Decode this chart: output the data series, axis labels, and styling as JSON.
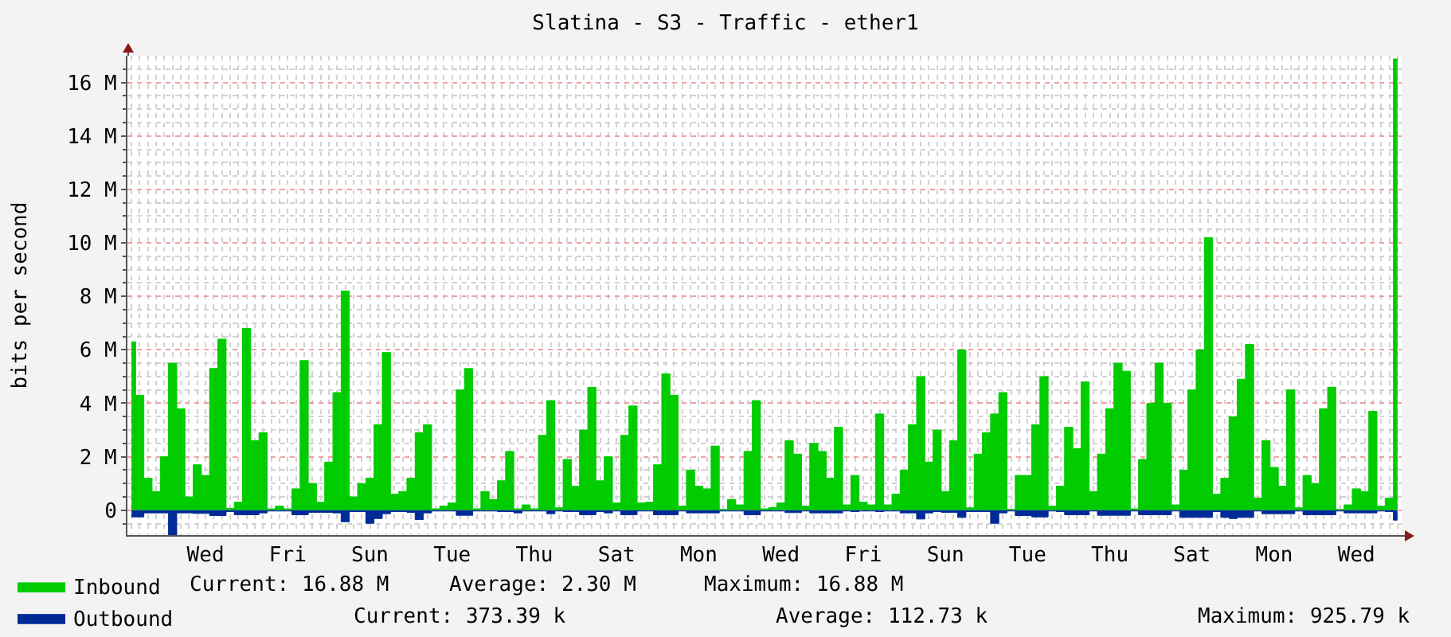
{
  "chart_data": {
    "type": "area",
    "title": "Slatina - S3 - Traffic - ether1",
    "ylabel": "bits per second",
    "categories": [
      null,
      null,
      null,
      null,
      null,
      null,
      null,
      null,
      null,
      "Wed",
      null,
      null,
      null,
      null,
      null,
      null,
      null,
      null,
      null,
      "Fri",
      null,
      null,
      null,
      null,
      null,
      null,
      null,
      null,
      null,
      "Sun",
      null,
      null,
      null,
      null,
      null,
      null,
      null,
      null,
      null,
      "Tue",
      null,
      null,
      null,
      null,
      null,
      null,
      null,
      null,
      null,
      "Thu",
      null,
      null,
      null,
      null,
      null,
      null,
      null,
      null,
      null,
      "Sat",
      null,
      null,
      null,
      null,
      null,
      null,
      null,
      null,
      null,
      "Mon",
      null,
      null,
      null,
      null,
      null,
      null,
      null,
      null,
      null,
      "Wed",
      null,
      null,
      null,
      null,
      null,
      null,
      null,
      null,
      null,
      "Fri",
      null,
      null,
      null,
      null,
      null,
      null,
      null,
      null,
      null,
      "Sun",
      null,
      null,
      null,
      null,
      null,
      null,
      null,
      null,
      null,
      "Tue",
      null,
      null,
      null,
      null,
      null,
      null,
      null,
      null,
      null,
      "Thu",
      null,
      null,
      null,
      null,
      null,
      null,
      null,
      null,
      null,
      "Sat",
      null,
      null,
      null,
      null,
      null,
      null,
      null,
      null,
      null,
      "Mon",
      null,
      null,
      null,
      null,
      null,
      null,
      null,
      null,
      null,
      "Wed",
      null,
      null,
      null,
      null,
      null
    ],
    "series": [
      {
        "name": "Inbound",
        "color": "#00cc00",
        "values": [
          6.3,
          4.3,
          1.2,
          0.7,
          2.0,
          5.5,
          3.8,
          0.5,
          1.7,
          1.3,
          5.3,
          6.4,
          0.07,
          0.3,
          6.8,
          2.6,
          2.9,
          0.05,
          0.15,
          0.05,
          0.8,
          5.6,
          1.0,
          0.3,
          1.8,
          4.4,
          8.2,
          0.5,
          1.0,
          1.2,
          3.2,
          5.9,
          0.6,
          0.7,
          1.2,
          2.9,
          3.2,
          0.05,
          0.15,
          0.27,
          4.5,
          5.3,
          0.05,
          0.7,
          0.4,
          1.1,
          2.2,
          0.05,
          0.2,
          0.05,
          2.8,
          4.1,
          0.09,
          1.9,
          0.9,
          3.0,
          4.6,
          1.1,
          2.0,
          0.27,
          2.8,
          3.9,
          0.27,
          0.3,
          1.7,
          5.1,
          4.3,
          0.15,
          1.5,
          0.9,
          0.8,
          2.4,
          0.03,
          0.4,
          0.2,
          2.2,
          4.1,
          0.05,
          0.1,
          0.27,
          2.6,
          2.1,
          0.15,
          2.5,
          2.2,
          1.2,
          3.1,
          0.2,
          1.3,
          0.3,
          0.2,
          3.6,
          0.2,
          0.6,
          1.5,
          3.2,
          5.0,
          1.8,
          3.0,
          0.7,
          2.6,
          6.0,
          0.09,
          2.1,
          2.9,
          3.6,
          4.4,
          0.03,
          1.3,
          1.3,
          3.2,
          5.0,
          0.15,
          0.9,
          3.1,
          2.3,
          4.8,
          0.7,
          2.1,
          3.8,
          5.5,
          5.2,
          0.05,
          1.9,
          4.0,
          5.5,
          4.0,
          0.2,
          1.5,
          4.5,
          6.0,
          10.2,
          0.6,
          1.2,
          3.5,
          4.9,
          6.2,
          0.45,
          2.6,
          1.6,
          0.9,
          4.5,
          0.09,
          1.3,
          1.0,
          3.8,
          4.6,
          0.03,
          0.2,
          0.8,
          0.7,
          3.7,
          0.15,
          0.45,
          16.88
        ]
      },
      {
        "name": "Outbound",
        "color": "#002a97",
        "values": [
          -0.25,
          -0.25,
          -0.1,
          -0.1,
          -0.1,
          -0.92,
          -0.1,
          -0.1,
          -0.12,
          -0.12,
          -0.2,
          -0.2,
          -0.05,
          -0.17,
          -0.17,
          -0.17,
          -0.1,
          -0.03,
          -0.03,
          -0.03,
          -0.17,
          -0.17,
          -0.08,
          -0.08,
          -0.08,
          -0.1,
          -0.43,
          -0.05,
          -0.05,
          -0.49,
          -0.31,
          -0.13,
          -0.05,
          -0.05,
          -0.08,
          -0.35,
          -0.1,
          -0.03,
          -0.03,
          -0.03,
          -0.19,
          -0.19,
          -0.03,
          -0.03,
          -0.03,
          -0.05,
          -0.05,
          -0.1,
          -0.03,
          -0.03,
          -0.03,
          -0.13,
          -0.03,
          -0.05,
          -0.05,
          -0.17,
          -0.17,
          -0.05,
          -0.1,
          -0.03,
          -0.17,
          -0.17,
          -0.03,
          -0.03,
          -0.17,
          -0.17,
          -0.17,
          -0.03,
          -0.1,
          -0.1,
          -0.1,
          -0.1,
          -0.03,
          -0.03,
          -0.03,
          -0.17,
          -0.17,
          -0.03,
          -0.03,
          -0.03,
          -0.09,
          -0.09,
          -0.03,
          -0.1,
          -0.1,
          -0.1,
          -0.1,
          -0.03,
          -0.05,
          -0.03,
          -0.03,
          -0.05,
          -0.03,
          -0.03,
          -0.1,
          -0.1,
          -0.33,
          -0.1,
          -0.05,
          -0.08,
          -0.08,
          -0.27,
          -0.05,
          -0.05,
          -0.05,
          -0.49,
          -0.1,
          -0.03,
          -0.2,
          -0.2,
          -0.25,
          -0.25,
          -0.03,
          -0.05,
          -0.17,
          -0.17,
          -0.17,
          -0.03,
          -0.19,
          -0.19,
          -0.19,
          -0.19,
          -0.03,
          -0.17,
          -0.17,
          -0.17,
          -0.17,
          -0.03,
          -0.27,
          -0.27,
          -0.27,
          -0.27,
          -0.05,
          -0.27,
          -0.31,
          -0.27,
          -0.27,
          -0.03,
          -0.13,
          -0.13,
          -0.13,
          -0.13,
          -0.03,
          -0.17,
          -0.17,
          -0.17,
          -0.17,
          -0.03,
          -0.1,
          -0.1,
          -0.1,
          -0.1,
          -0.03,
          -0.05,
          -0.37
        ]
      }
    ],
    "ylim": [
      -0.93,
      17
    ],
    "yticks": [
      {
        "value": -0.5,
        "label": null
      },
      0,
      {
        "value": 0.5,
        "label": null
      },
      {
        "value": 1,
        "label": null
      },
      {
        "value": 1.5,
        "label": null
      },
      {
        "value": 2,
        "label": "2 M"
      },
      {
        "value": 2.5,
        "label": null
      },
      {
        "value": 3,
        "label": null
      },
      {
        "value": 3.5,
        "label": null
      },
      {
        "value": 4,
        "label": "4 M"
      },
      {
        "value": 4.5,
        "label": null
      },
      {
        "value": 5,
        "label": null
      },
      {
        "value": 5.5,
        "label": null
      },
      {
        "value": 6,
        "label": "6 M"
      },
      {
        "value": 6.5,
        "label": null
      },
      {
        "value": 7,
        "label": null
      },
      {
        "value": 7.5,
        "label": null
      },
      {
        "value": 8,
        "label": "8 M"
      },
      {
        "value": 8.5,
        "label": null
      },
      {
        "value": 9,
        "label": null
      },
      {
        "value": 9.5,
        "label": null
      },
      {
        "value": 10,
        "label": "10 M"
      },
      {
        "value": 10.5,
        "label": null
      },
      {
        "value": 11,
        "label": null
      },
      {
        "value": 11.5,
        "label": null
      },
      {
        "value": 12,
        "label": "12 M"
      },
      {
        "value": 12.5,
        "label": null
      },
      {
        "value": 13,
        "label": null
      },
      {
        "value": 13.5,
        "label": null
      },
      {
        "value": 14,
        "label": "14 M"
      },
      {
        "value": 14.5,
        "label": null
      },
      {
        "value": 15,
        "label": null
      },
      {
        "value": 15.5,
        "label": null
      },
      {
        "value": 16,
        "label": "16 M"
      },
      {
        "value": 16.5,
        "label": null
      }
    ],
    "grid": true,
    "legend": "bottom left",
    "annotations": [
      "Current: 16.88 M",
      "Average: 2.30 M",
      "Maximum: 16.88 M",
      "Current: 373.39 k",
      "Average: 112.73 k",
      "Maximum: 925.79 k"
    ]
  }
}
